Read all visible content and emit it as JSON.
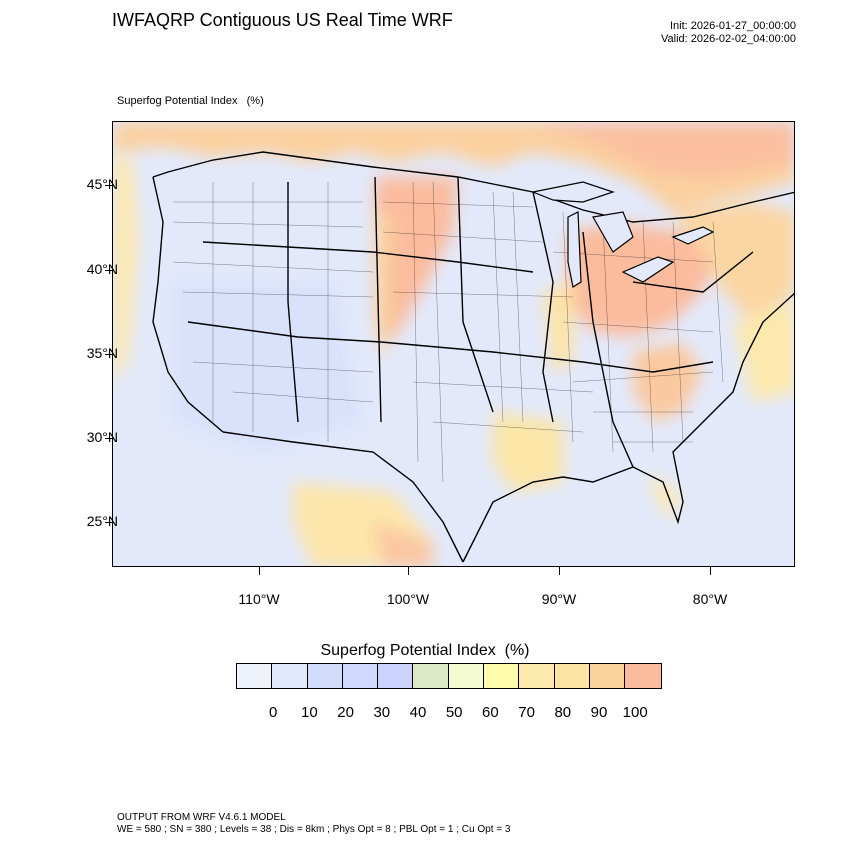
{
  "title": "IWFAQRP Contiguous US Real Time WRF",
  "init_label": "Init: 2026-01-27_00:00:00",
  "valid_label": "Valid: 2026-02-02_04:00:00",
  "variable_label": "Superfog Potential Index   (%)",
  "lat_labels": [
    "45°N",
    "40°N",
    "35°N",
    "30°N",
    "25°N"
  ],
  "lon_labels": [
    "110°W",
    "100°W",
    "90°W",
    "80°W"
  ],
  "colorbar": {
    "title": "Superfog Potential Index  (%)",
    "labels": [
      "0",
      "10",
      "20",
      "30",
      "40",
      "50",
      "60",
      "70",
      "80",
      "90",
      "100"
    ],
    "colors": [
      "#eef2fa",
      "#e2e8fb",
      "#d2dcfb",
      "#cfd9fd",
      "#cbd3fc",
      "#dde9c6",
      "#f4fbd2",
      "#fdfcaa",
      "#fce9ad",
      "#fbe3a4",
      "#fbd19c",
      "#fbbc9e"
    ]
  },
  "footer_line1": "OUTPUT FROM WRF V4.6.1 MODEL",
  "footer_line2": "WE = 580 ; SN = 380 ; Levels = 38 ; Dis = 8km ; Phys Opt = 8 ; PBL Opt = 1 ; Cu Opt = 3"
}
